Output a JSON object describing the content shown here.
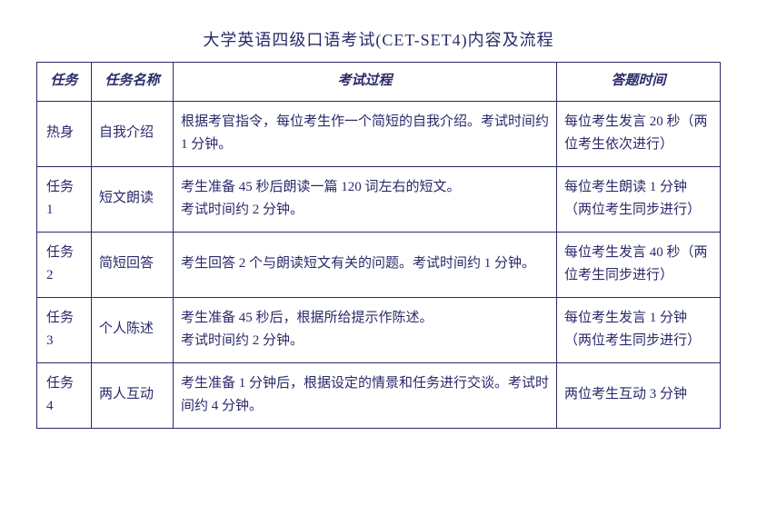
{
  "title": "大学英语四级口语考试(CET-SET4)内容及流程",
  "headers": {
    "task": "任务",
    "name": "任务名称",
    "process": "考试过程",
    "time": "答题时间"
  },
  "rows": [
    {
      "task": "热身",
      "name": "自我介绍",
      "process": "根据考官指令，每位考生作一个简短的自我介绍。考试时间约 1 分钟。",
      "time": "每位考生发言 20 秒（两位考生依次进行）"
    },
    {
      "task": "任务 1",
      "name": "短文朗读",
      "process": "考生准备 45 秒后朗读一篇 120 词左右的短文。\n考试时间约 2 分钟。",
      "time": "每位考生朗读 1 分钟（两位考生同步进行）"
    },
    {
      "task": "任务 2",
      "name": "简短回答",
      "process": "考生回答 2 个与朗读短文有关的问题。考试时间约 1 分钟。",
      "time": "每位考生发言 40 秒（两位考生同步进行）"
    },
    {
      "task": "任务 3",
      "name": "个人陈述",
      "process": "考生准备 45 秒后，根据所给提示作陈述。\n考试时间约 2 分钟。",
      "time": "每位考生发言 1 分钟（两位考生同步进行）"
    },
    {
      "task": "任务 4",
      "name": "两人互动",
      "process": "考生准备 1 分钟后，根据设定的情景和任务进行交谈。考试时间约 4 分钟。",
      "time": "两位考生互动 3 分钟"
    }
  ]
}
